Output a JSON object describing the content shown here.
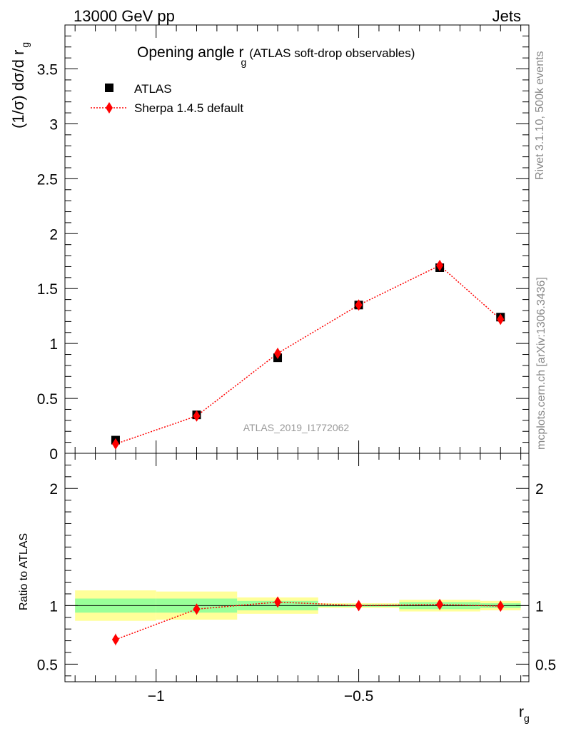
{
  "header": {
    "energy": "13000 GeV pp",
    "process": "Jets"
  },
  "side": {
    "rivet": "Rivet 3.1.10,  500k events",
    "mcplots": "mcplots.cern.ch [arXiv:1306.3436]"
  },
  "analysis_id": "ATLAS_2019_I1772062",
  "colors": {
    "data": "#000000",
    "mc": "#ff0000",
    "band_inner": "#99ff99",
    "band_outer": "#ffff99"
  },
  "chart_data": [
    {
      "type": "scatter",
      "panel": "main",
      "title": "Opening angle r",
      "title_sub": "g",
      "title_suffix": "(ATLAS soft-drop observables)",
      "ylabel": "(1/σ) dσ/d r",
      "ylabel_sub": "g",
      "xlim": [
        -1.225,
        -0.08
      ],
      "ylim": [
        0,
        3.9
      ],
      "y_log": false,
      "yticks": [
        0,
        0.5,
        1,
        1.5,
        2,
        2.5,
        3,
        3.5
      ],
      "ytick_labels": [
        "0",
        "0.5",
        "1",
        "1.5",
        "2",
        "2.5",
        "3",
        "3.5"
      ],
      "legend_position": "top-left",
      "series": [
        {
          "name": "ATLAS",
          "marker": "square",
          "x": [
            -1.1,
            -0.9,
            -0.7,
            -0.5,
            -0.3,
            -0.15
          ],
          "y": [
            0.12,
            0.35,
            0.87,
            1.35,
            1.69,
            1.24
          ]
        },
        {
          "name": "Sherpa 1.4.5 default",
          "marker": "diamond",
          "line": "dotted",
          "x": [
            -1.1,
            -0.9,
            -0.7,
            -0.5,
            -0.3,
            -0.15
          ],
          "y": [
            0.085,
            0.34,
            0.91,
            1.35,
            1.71,
            1.22
          ]
        }
      ]
    },
    {
      "type": "scatter",
      "panel": "ratio",
      "ylabel": "Ratio to ATLAS",
      "xlabel": "r",
      "xlabel_sub": "g",
      "xlim": [
        -1.225,
        -0.08
      ],
      "ylim": [
        0.35,
        2.3
      ],
      "xticks": [
        -1,
        -0.5
      ],
      "xtick_labels": [
        "−1",
        "−0.5"
      ],
      "yticks": [
        0.5,
        1,
        2
      ],
      "ytick_labels": [
        "0.5",
        "1",
        "2"
      ],
      "bands": [
        {
          "x0": -1.2,
          "x1": -1.0,
          "inner": [
            0.94,
            1.06
          ],
          "outer": [
            0.87,
            1.13
          ]
        },
        {
          "x0": -1.0,
          "x1": -0.8,
          "inner": [
            0.94,
            1.06
          ],
          "outer": [
            0.88,
            1.12
          ]
        },
        {
          "x0": -0.8,
          "x1": -0.6,
          "inner": [
            0.96,
            1.04
          ],
          "outer": [
            0.93,
            1.07
          ]
        },
        {
          "x0": -0.6,
          "x1": -0.4,
          "inner": [
            0.99,
            1.01
          ],
          "outer": [
            0.98,
            1.02
          ]
        },
        {
          "x0": -0.4,
          "x1": -0.2,
          "inner": [
            0.97,
            1.03
          ],
          "outer": [
            0.95,
            1.05
          ]
        },
        {
          "x0": -0.2,
          "x1": -0.1,
          "inner": [
            0.98,
            1.02
          ],
          "outer": [
            0.96,
            1.04
          ]
        }
      ],
      "series": [
        {
          "name": "Sherpa 1.4.5 default",
          "marker": "diamond",
          "line": "dotted",
          "x": [
            -1.1,
            -0.9,
            -0.7,
            -0.5,
            -0.3,
            -0.15
          ],
          "y": [
            0.71,
            0.97,
            1.03,
            1.0,
            1.01,
            0.995
          ],
          "yerr": [
            0.05,
            0.01,
            0.01,
            0.005,
            0.005,
            0.01
          ]
        }
      ]
    }
  ]
}
